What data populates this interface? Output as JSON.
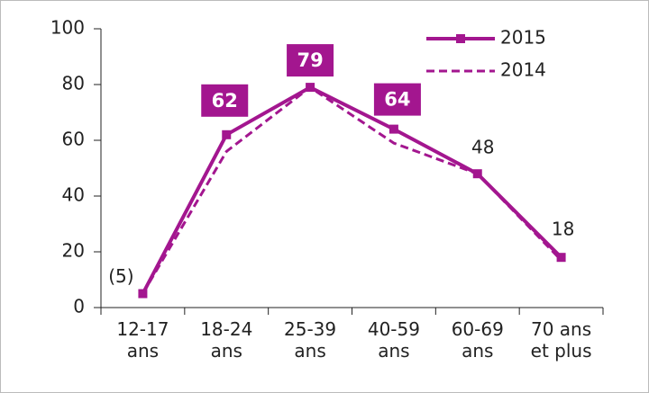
{
  "chart_data": {
    "type": "line",
    "categories": [
      "12-17 ans",
      "18-24 ans",
      "25-39 ans",
      "40-59 ans",
      "60-69 ans",
      "70 ans et plus"
    ],
    "series": [
      {
        "name": "2015",
        "color": "#a3168f",
        "dashed": false,
        "marker": "square",
        "values": [
          5,
          62,
          79,
          64,
          48,
          18
        ],
        "value_labels": [
          "(5)",
          "62",
          "79",
          "64",
          "48",
          "18"
        ],
        "highlight_labels": [
          false,
          true,
          true,
          true,
          false,
          false
        ]
      },
      {
        "name": "2014",
        "color": "#a3168f",
        "dashed": true,
        "marker": "none",
        "values": [
          5,
          56,
          79,
          59,
          48,
          17
        ]
      }
    ],
    "ylim": [
      0,
      100
    ],
    "yticks": [
      0,
      20,
      40,
      60,
      80,
      100
    ],
    "legend": "top-right"
  }
}
